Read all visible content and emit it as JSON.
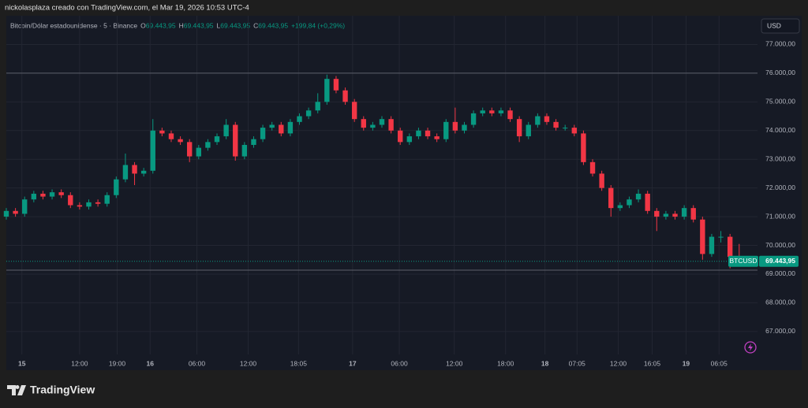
{
  "header": "nickolasplaza creado con TradingView.com, el Mar 19, 2026 10:53 UTC-4",
  "chart_data": {
    "type": "candlestick",
    "legend": {
      "symbol": "Bitcoin/Dólar estadounidense · 5 · Binance",
      "o_label": "O",
      "o": "69.443,95",
      "h_label": "H",
      "h": "69.443,95",
      "l_label": "L",
      "l": "69.443,95",
      "c_label": "C",
      "c": "69.443,95",
      "change": "+199,84 (+0,29%)"
    },
    "currency": "USD",
    "symbol_badge": "BTCUSD",
    "last_price": {
      "value": 69443.95,
      "label": "69.443,95"
    },
    "x": [
      0,
      1,
      2,
      3,
      4,
      5,
      6,
      7,
      8,
      9,
      10,
      11,
      12,
      13,
      14,
      15,
      16,
      17,
      18,
      19,
      20,
      21,
      22,
      23,
      24,
      25,
      26,
      27,
      28,
      29,
      30,
      31,
      32,
      33,
      34,
      35,
      36,
      37,
      38,
      39,
      40,
      41,
      42,
      43,
      44,
      45,
      46,
      47,
      48,
      49,
      50,
      51,
      52,
      53,
      54,
      55,
      56,
      57,
      58,
      59,
      60,
      61,
      62,
      63,
      64,
      65,
      66,
      67,
      68,
      69,
      70,
      71,
      72,
      73,
      74,
      75,
      76,
      77,
      78,
      79,
      80
    ],
    "open": [
      71000,
      71200,
      71100,
      71600,
      71800,
      71700,
      71850,
      71750,
      71400,
      71350,
      71500,
      71450,
      71750,
      72300,
      72800,
      72500,
      72600,
      74000,
      73900,
      73700,
      73600,
      73100,
      73400,
      73600,
      73800,
      74200,
      73100,
      73500,
      73700,
      74100,
      74200,
      73900,
      74300,
      74500,
      74700,
      75000,
      75800,
      75400,
      75000,
      74400,
      74100,
      74200,
      74400,
      74000,
      73600,
      73800,
      74000,
      73800,
      73700,
      74300,
      74000,
      74200,
      74600,
      74700,
      74600,
      74700,
      74400,
      73800,
      74200,
      74500,
      74300,
      74100,
      74100,
      73900,
      72900,
      72500,
      72000,
      71300,
      71400,
      71600,
      71800,
      71200,
      71000,
      71100,
      71000,
      71300,
      70900,
      69700,
      70300,
      70300,
      69600
    ],
    "high": [
      71300,
      71300,
      71700,
      71900,
      71900,
      71950,
      71950,
      71850,
      71500,
      71600,
      71600,
      71850,
      72400,
      73200,
      72900,
      72700,
      74400,
      74100,
      74000,
      73800,
      73700,
      73500,
      73700,
      73900,
      74400,
      74300,
      73600,
      73800,
      74200,
      74300,
      74300,
      74400,
      74600,
      74800,
      75300,
      75950,
      75900,
      75500,
      75100,
      74500,
      74300,
      74500,
      74500,
      74100,
      73900,
      74100,
      74100,
      73900,
      74400,
      74800,
      74300,
      74700,
      74800,
      74800,
      74800,
      74800,
      74500,
      74300,
      74600,
      74600,
      74400,
      74200,
      74200,
      74000,
      73000,
      72600,
      72100,
      71500,
      71700,
      71950,
      71900,
      71300,
      71200,
      71200,
      71400,
      71400,
      71000,
      70400,
      70500,
      70400,
      70050
    ],
    "low": [
      70900,
      71000,
      71000,
      71500,
      71600,
      71600,
      71650,
      71300,
      71250,
      71250,
      71350,
      71350,
      71650,
      72200,
      72100,
      72400,
      72500,
      73800,
      73600,
      73500,
      72900,
      73000,
      73300,
      73500,
      73700,
      72950,
      73000,
      73400,
      73600,
      74000,
      73800,
      73800,
      74200,
      74400,
      74600,
      74900,
      75300,
      74900,
      74300,
      74000,
      74000,
      74100,
      73900,
      73500,
      73500,
      73700,
      73700,
      73600,
      73600,
      73900,
      73900,
      74100,
      74500,
      74500,
      74500,
      74300,
      73600,
      73700,
      74100,
      74200,
      74000,
      74000,
      73800,
      72800,
      72400,
      71900,
      71000,
      71200,
      71300,
      71500,
      71100,
      70500,
      70900,
      70900,
      70900,
      70800,
      69500,
      69600,
      70100,
      69200,
      69300
    ],
    "close": [
      71200,
      71100,
      71600,
      71800,
      71700,
      71850,
      71750,
      71400,
      71350,
      71500,
      71450,
      71750,
      72300,
      72800,
      72500,
      72600,
      74000,
      73900,
      73700,
      73600,
      73100,
      73400,
      73600,
      73800,
      74200,
      73100,
      73500,
      73700,
      74100,
      74200,
      73900,
      74300,
      74500,
      74700,
      75000,
      75800,
      75400,
      75000,
      74400,
      74100,
      74200,
      74400,
      74000,
      73600,
      73800,
      74000,
      73800,
      73700,
      74300,
      74000,
      74200,
      74600,
      74700,
      74600,
      74700,
      74400,
      73800,
      74200,
      74500,
      74300,
      74100,
      74100,
      73900,
      72900,
      72500,
      72000,
      71300,
      71400,
      71600,
      71800,
      71200,
      71000,
      71100,
      71000,
      71300,
      70900,
      69700,
      70300,
      70300,
      69600,
      69443.95
    ],
    "up_color": "#089981",
    "down_color": "#f23645",
    "xlim": [
      0,
      82
    ],
    "ylim": [
      66200,
      78000
    ],
    "xticks": [
      {
        "value": 1.7,
        "label": "15"
      },
      {
        "value": 8.0,
        "label": "12:00"
      },
      {
        "value": 12.1,
        "label": "19:00"
      },
      {
        "value": 15.7,
        "label": "16"
      },
      {
        "value": 20.8,
        "label": "06:00"
      },
      {
        "value": 26.4,
        "label": "12:00"
      },
      {
        "value": 31.9,
        "label": "18:05"
      },
      {
        "value": 37.8,
        "label": "17"
      },
      {
        "value": 42.9,
        "label": "06:00"
      },
      {
        "value": 48.9,
        "label": "12:00"
      },
      {
        "value": 54.5,
        "label": "18:00"
      },
      {
        "value": 58.8,
        "label": "18"
      },
      {
        "value": 62.3,
        "label": "07:05"
      },
      {
        "value": 66.8,
        "label": "12:00"
      },
      {
        "value": 70.5,
        "label": "16:05"
      },
      {
        "value": 74.2,
        "label": "19"
      },
      {
        "value": 77.8,
        "label": "06:05"
      }
    ],
    "yticks": [
      {
        "value": 67000,
        "label": "67.000,00"
      },
      {
        "value": 68000,
        "label": "68.000,00"
      },
      {
        "value": 69000,
        "label": "69.000,00"
      },
      {
        "value": 70000,
        "label": "70.000,00"
      },
      {
        "value": 71000,
        "label": "71.000,00"
      },
      {
        "value": 72000,
        "label": "72.000,00"
      },
      {
        "value": 73000,
        "label": "73.000,00"
      },
      {
        "value": 74000,
        "label": "74.000,00"
      },
      {
        "value": 75000,
        "label": "75.000,00"
      },
      {
        "value": 76000,
        "label": "76.000,00"
      },
      {
        "value": 77000,
        "label": "77.000,00"
      }
    ],
    "grid": true,
    "horizontal_lines": [
      76000,
      69135
    ]
  },
  "footer": {
    "brand": "TradingView"
  }
}
